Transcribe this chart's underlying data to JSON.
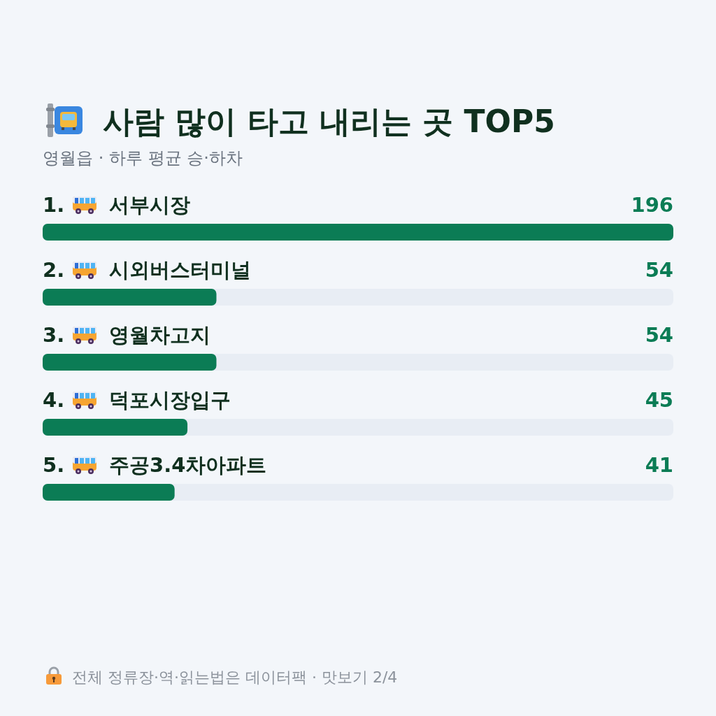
{
  "chart_data": {
    "type": "bar",
    "orientation": "horizontal",
    "title": "사람 많이 타고 내리는 곳 TOP5",
    "subtitle": "영월읍 · 하루 평균 승·하차",
    "categories": [
      "1. 서부시장",
      "2. 시외버스터미널",
      "3. 영월차고지",
      "4. 덕포시장입구",
      "5. 주공3.4차아파트"
    ],
    "values": [
      196,
      54,
      54,
      45,
      41
    ],
    "color": "#0b7c55",
    "xlim": [
      0,
      196
    ],
    "data_labels": true,
    "annotations": [
      "전체 정류장·역·읽는법은 데이터팩 · 맛보기 2/4"
    ]
  }
}
